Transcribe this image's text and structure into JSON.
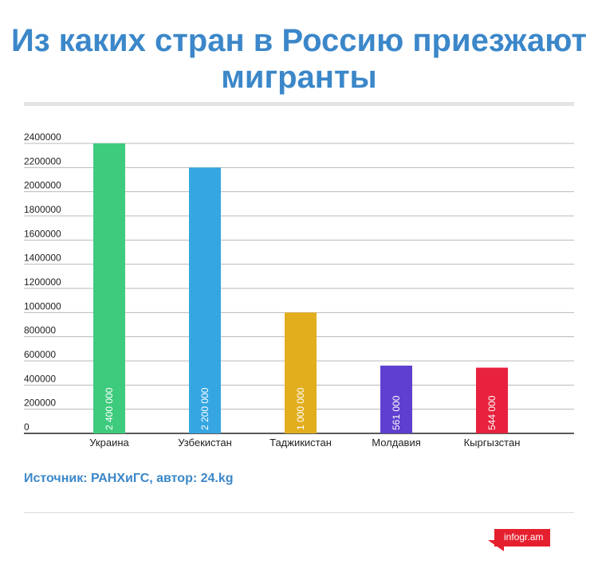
{
  "title": "Из каких стран в Россию приезжают мигранты",
  "source": "Источник: РАНХиГС, автор: 24.kg",
  "branding": {
    "text": "infogr.am",
    "color": "#e5202e"
  },
  "chart_data": {
    "type": "bar",
    "title": "Из каких стран в Россию приезжают мигранты",
    "xlabel": "",
    "ylabel": "",
    "ylim": [
      0,
      2400000
    ],
    "yticks": [
      "0",
      "200000",
      "400000",
      "600000",
      "800000",
      "1000000",
      "1200000",
      "1400000",
      "1600000",
      "1800000",
      "2000000",
      "2200000",
      "2400000"
    ],
    "grid": true,
    "categories": [
      "Украина",
      "Узбекистан",
      "Таджикистан",
      "Молдавия",
      "Кыргызстан"
    ],
    "values": [
      2400000,
      2200000,
      1000000,
      561000,
      544000
    ],
    "data_labels": [
      "2 400 000",
      "2 200 000",
      "1 000 000",
      "561 000",
      "544 000"
    ],
    "colors": [
      "#3ecb7e",
      "#36a6e2",
      "#e2ae1e",
      "#5f3fcf",
      "#e8223e"
    ]
  }
}
